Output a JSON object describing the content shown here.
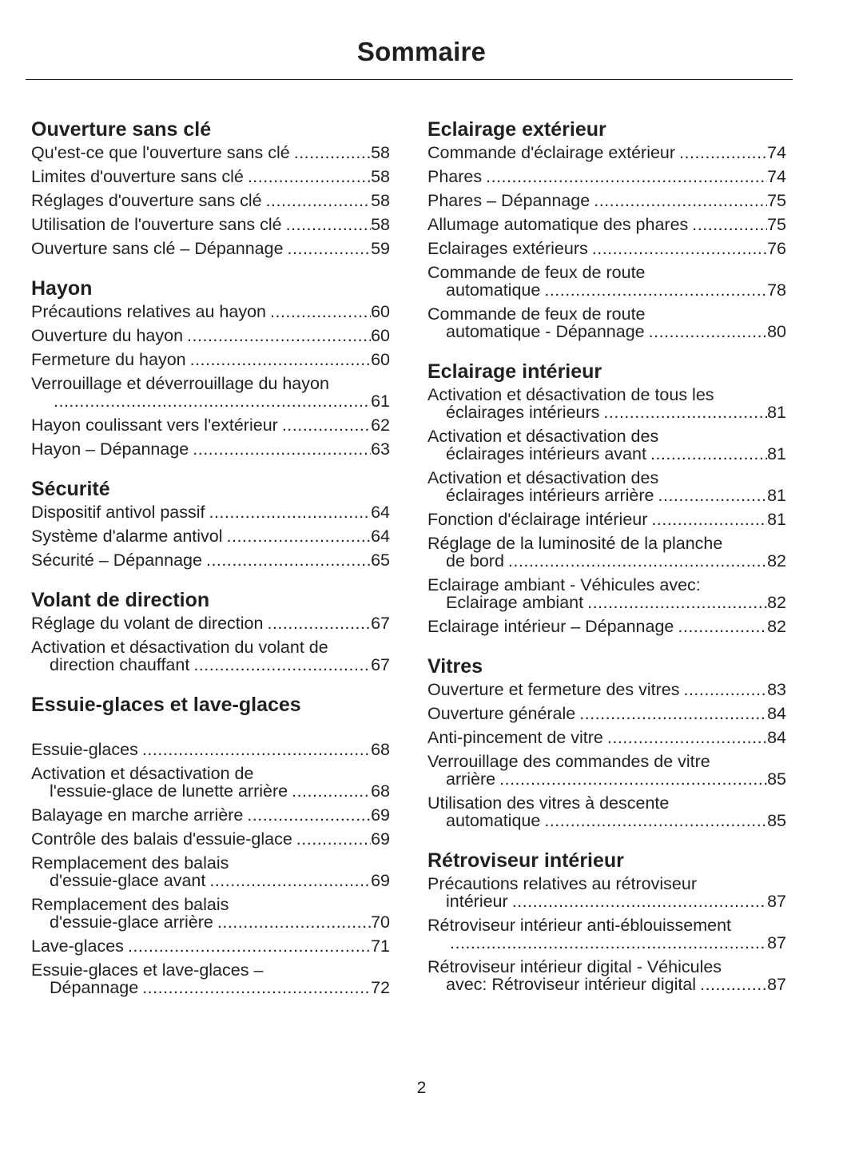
{
  "title": "Sommaire",
  "page_number": "2",
  "columns": [
    [
      {
        "heading": "Ouverture sans clé",
        "entries": [
          {
            "lines": [
              "Qu'est-ce que l'ouverture sans clé"
            ],
            "page": "58"
          },
          {
            "lines": [
              "Limites d'ouverture sans clé"
            ],
            "page": "58"
          },
          {
            "lines": [
              "Réglages d'ouverture sans clé"
            ],
            "page": "58"
          },
          {
            "lines": [
              "Utilisation de l'ouverture sans clé"
            ],
            "page": "58"
          },
          {
            "lines": [
              "Ouverture sans clé – Dépannage"
            ],
            "page": "59"
          }
        ]
      },
      {
        "heading": "Hayon",
        "entries": [
          {
            "lines": [
              "Précautions relatives au hayon"
            ],
            "page": "60"
          },
          {
            "lines": [
              "Ouverture du hayon"
            ],
            "page": "60"
          },
          {
            "lines": [
              "Fermeture du hayon"
            ],
            "page": "60"
          },
          {
            "lines": [
              "Verrouillage et déverrouillage du hayon",
              ""
            ],
            "page": "61"
          },
          {
            "lines": [
              "Hayon coulissant vers l'extérieur"
            ],
            "page": "62"
          },
          {
            "lines": [
              "Hayon – Dépannage"
            ],
            "page": "63"
          }
        ]
      },
      {
        "heading": "Sécurité",
        "entries": [
          {
            "lines": [
              "Dispositif antivol passif"
            ],
            "page": "64"
          },
          {
            "lines": [
              "Système d'alarme antivol"
            ],
            "page": "64"
          },
          {
            "lines": [
              "Sécurité – Dépannage"
            ],
            "page": "65"
          }
        ]
      },
      {
        "heading": "Volant de direction",
        "entries": [
          {
            "lines": [
              "Réglage du volant de direction"
            ],
            "page": "67"
          },
          {
            "lines": [
              "Activation et désactivation du volant de",
              "direction chauffant"
            ],
            "page": "67"
          }
        ]
      },
      {
        "heading": "Essuie-glaces et lave-glaces",
        "extra_gap": true,
        "entries": [
          {
            "lines": [
              "Essuie-glaces"
            ],
            "page": "68"
          },
          {
            "lines": [
              "Activation et désactivation de",
              "l'essuie-glace de lunette arrière"
            ],
            "page": "68"
          },
          {
            "lines": [
              "Balayage en marche arrière"
            ],
            "page": "69"
          },
          {
            "lines": [
              "Contrôle des balais d'essuie-glace"
            ],
            "page": "69"
          },
          {
            "lines": [
              "Remplacement des balais",
              "d'essuie-glace avant"
            ],
            "page": "69"
          },
          {
            "lines": [
              "Remplacement des balais",
              "d'essuie-glace arrière"
            ],
            "page": "70"
          },
          {
            "lines": [
              "Lave-glaces"
            ],
            "page": "71"
          },
          {
            "lines": [
              "Essuie-glaces et lave-glaces –",
              "Dépannage"
            ],
            "page": "72"
          }
        ]
      }
    ],
    [
      {
        "heading": "Eclairage extérieur",
        "entries": [
          {
            "lines": [
              "Commande d'éclairage extérieur"
            ],
            "page": "74"
          },
          {
            "lines": [
              "Phares"
            ],
            "page": "74"
          },
          {
            "lines": [
              "Phares – Dépannage"
            ],
            "page": "75"
          },
          {
            "lines": [
              "Allumage automatique des phares"
            ],
            "page": "75"
          },
          {
            "lines": [
              "Eclairages extérieurs"
            ],
            "page": "76"
          },
          {
            "lines": [
              "Commande de feux de route",
              "automatique"
            ],
            "page": "78"
          },
          {
            "lines": [
              "Commande de feux de route",
              "automatique - Dépannage"
            ],
            "page": "80"
          }
        ]
      },
      {
        "heading": "Eclairage intérieur",
        "entries": [
          {
            "lines": [
              "Activation et désactivation de tous les",
              "éclairages intérieurs"
            ],
            "page": "81"
          },
          {
            "lines": [
              "Activation et désactivation des",
              "éclairages intérieurs avant"
            ],
            "page": "81"
          },
          {
            "lines": [
              "Activation et désactivation des",
              "éclairages intérieurs arrière"
            ],
            "page": "81"
          },
          {
            "lines": [
              "Fonction d'éclairage intérieur"
            ],
            "page": "81"
          },
          {
            "lines": [
              "Réglage de la luminosité de la planche",
              "de bord"
            ],
            "page": "82"
          },
          {
            "lines": [
              "Eclairage ambiant - Véhicules avec:",
              "Eclairage ambiant"
            ],
            "page": "82"
          },
          {
            "lines": [
              "Eclairage intérieur – Dépannage"
            ],
            "page": "82"
          }
        ]
      },
      {
        "heading": "Vitres",
        "entries": [
          {
            "lines": [
              "Ouverture et fermeture des vitres"
            ],
            "page": "83"
          },
          {
            "lines": [
              "Ouverture générale"
            ],
            "page": "84"
          },
          {
            "lines": [
              "Anti-pincement de vitre"
            ],
            "page": "84"
          },
          {
            "lines": [
              "Verrouillage des commandes de vitre",
              "arrière"
            ],
            "page": "85"
          },
          {
            "lines": [
              "Utilisation des vitres à descente",
              "automatique"
            ],
            "page": "85"
          }
        ]
      },
      {
        "heading": "Rétroviseur intérieur",
        "entries": [
          {
            "lines": [
              "Précautions relatives au rétroviseur",
              "intérieur"
            ],
            "page": "87"
          },
          {
            "lines": [
              "Rétroviseur intérieur anti-éblouissement",
              ""
            ],
            "page": "87"
          },
          {
            "lines": [
              "Rétroviseur intérieur digital - Véhicules",
              "avec: Rétroviseur intérieur digital"
            ],
            "page": "87"
          }
        ]
      }
    ]
  ]
}
